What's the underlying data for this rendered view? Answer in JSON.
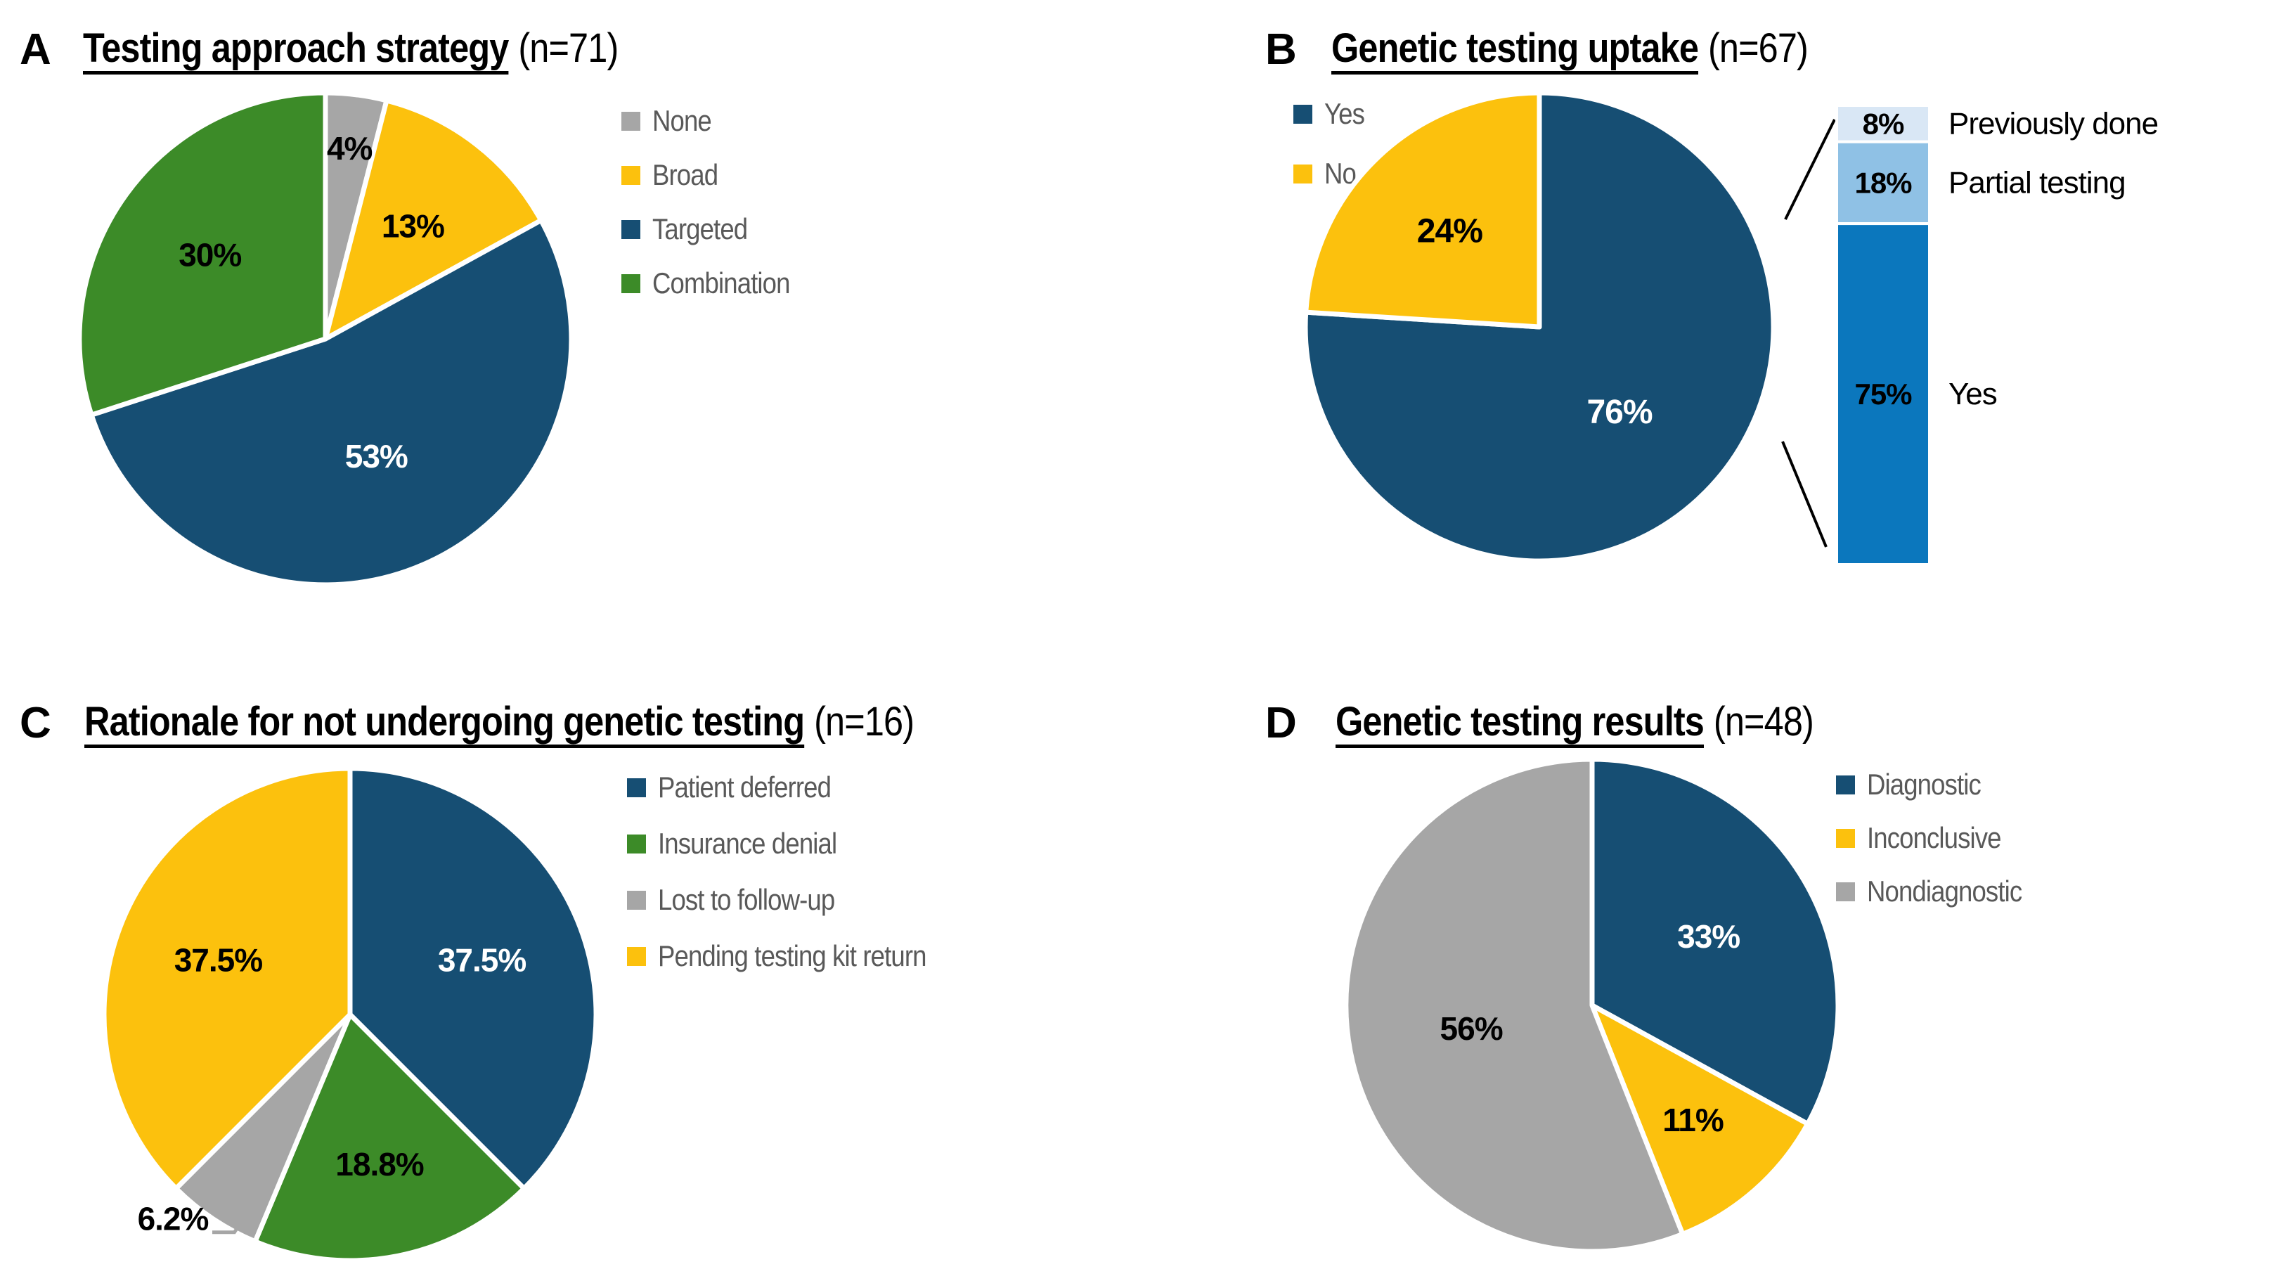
{
  "figure": {
    "background": "#ffffff",
    "title_color": "#000000",
    "legend_text_color": "#595959"
  },
  "chart_data": [
    {
      "id": "A",
      "type": "pie",
      "title": "Testing approach strategy",
      "n": 71,
      "categories": [
        "None",
        "Broad",
        "Targeted",
        "Combination"
      ],
      "values": [
        4,
        13,
        53,
        30
      ],
      "unit": "percent",
      "legend_position": "right",
      "start_angle": "12-oclock",
      "direction": "clockwise"
    },
    {
      "id": "B",
      "type": "pie",
      "title": "Genetic testing uptake",
      "n": 67,
      "categories": [
        "Yes",
        "No"
      ],
      "values": [
        76,
        24
      ],
      "unit": "percent",
      "legend_position": "left",
      "start_angle": "12-oclock",
      "direction": "clockwise",
      "breakdown_bar": {
        "type": "bar",
        "stacked": true,
        "applies_to": "Yes",
        "categories": [
          "Previously done",
          "Partial testing",
          "Yes"
        ],
        "values": [
          8,
          18,
          75
        ],
        "unit": "percent"
      }
    },
    {
      "id": "C",
      "type": "pie",
      "title": "Rationale for not undergoing genetic testing",
      "n": 16,
      "categories": [
        "Patient deferred",
        "Insurance denial",
        "Lost to follow-up",
        "Pending testing kit return"
      ],
      "values": [
        37.5,
        18.8,
        6.2,
        37.5
      ],
      "unit": "percent",
      "legend_position": "right",
      "start_angle": "12-oclock",
      "direction": "clockwise"
    },
    {
      "id": "D",
      "type": "pie",
      "title": "Genetic testing results",
      "n": 48,
      "categories": [
        "Diagnostic",
        "Inconclusive",
        "Nondiagnostic"
      ],
      "values": [
        33,
        11,
        56
      ],
      "unit": "percent",
      "legend_position": "right",
      "start_angle": "12-oclock",
      "direction": "clockwise"
    }
  ],
  "panels": {
    "A": {
      "letter": "A",
      "title": "Testing approach strategy",
      "n_label": "(n=71)",
      "legend": [
        {
          "label": "None",
          "color": "#a6a6a6"
        },
        {
          "label": "Broad",
          "color": "#fcc10d"
        },
        {
          "label": "Targeted",
          "color": "#164e73"
        },
        {
          "label": "Combination",
          "color": "#3c8b28"
        }
      ],
      "chart": {
        "type": "pie",
        "slices": [
          {
            "label": "None",
            "value": 4,
            "display": "4%",
            "color": "#a6a6a6",
            "text_color": "#000000",
            "label_r": 0.78
          },
          {
            "label": "Broad",
            "value": 13,
            "display": "13%",
            "color": "#fcc10d",
            "text_color": "#000000",
            "label_r": 0.58
          },
          {
            "label": "Targeted",
            "value": 53,
            "display": "53%",
            "color": "#164e73",
            "text_color": "#ffffff",
            "label_r": 0.52
          },
          {
            "label": "Combination",
            "value": 30,
            "display": "30%",
            "color": "#3c8b28",
            "text_color": "#000000",
            "label_r": 0.58
          }
        ]
      }
    },
    "B": {
      "letter": "B",
      "title": "Genetic testing uptake",
      "n_label": "(n=67)",
      "legend": [
        {
          "label": "Yes",
          "color": "#164e73"
        },
        {
          "label": "No",
          "color": "#fcc10d"
        }
      ],
      "chart": {
        "type": "pie",
        "slices": [
          {
            "label": "Yes",
            "value": 76,
            "display": "76%",
            "color": "#164e73",
            "text_color": "#ffffff",
            "label_r": 0.5,
            "label_size": 48
          },
          {
            "label": "No",
            "value": 24,
            "display": "24%",
            "color": "#fcc10d",
            "text_color": "#000000",
            "label_r": 0.56,
            "label_size": 48
          }
        ]
      },
      "bar": {
        "type": "stacked-bar",
        "segments": [
          {
            "label": "Previously done",
            "value": 8,
            "display": "8%",
            "color": "#d9e7f5"
          },
          {
            "label": "Partial testing",
            "value": 18,
            "display": "18%",
            "color": "#8fc1e5"
          },
          {
            "label": "Yes",
            "value": 75,
            "display": "75%",
            "color": "#0b77bd"
          }
        ]
      }
    },
    "C": {
      "letter": "C",
      "title": "Rationale for not undergoing genetic testing",
      "n_label": "(n=16)",
      "legend": [
        {
          "label": "Patient deferred",
          "color": "#164e73"
        },
        {
          "label": "Insurance denial",
          "color": "#3c8b28"
        },
        {
          "label": "Lost to follow-up",
          "color": "#a6a6a6"
        },
        {
          "label": "Pending testing kit return",
          "color": "#fcc10d"
        }
      ],
      "chart": {
        "type": "pie",
        "slices": [
          {
            "label": "Patient deferred",
            "value": 37.5,
            "display": "37.5%",
            "color": "#164e73",
            "text_color": "#ffffff",
            "label_r": 0.58
          },
          {
            "label": "Insurance denial",
            "value": 18.8,
            "display": "18.8%",
            "color": "#3c8b28",
            "text_color": "#000000",
            "label_r": 0.62
          },
          {
            "label": "Lost to follow-up",
            "value": 6.2,
            "display": "6.2%",
            "color": "#a6a6a6",
            "text_color": "#000000",
            "label_outside": true
          },
          {
            "label": "Pending testing kit return",
            "value": 37.5,
            "display": "37.5%",
            "color": "#fcc10d",
            "text_color": "#000000",
            "label_r": 0.58
          }
        ]
      }
    },
    "D": {
      "letter": "D",
      "title": "Genetic testing results",
      "n_label": "(n=48)",
      "legend": [
        {
          "label": "Diagnostic",
          "color": "#164e73"
        },
        {
          "label": "Inconclusive",
          "color": "#fcc10d"
        },
        {
          "label": "Nondiagnostic",
          "color": "#a6a6a6"
        }
      ],
      "chart": {
        "type": "pie",
        "slices": [
          {
            "label": "Diagnostic",
            "value": 33,
            "display": "33%",
            "color": "#164e73",
            "text_color": "#ffffff",
            "label_r": 0.55
          },
          {
            "label": "Inconclusive",
            "value": 11,
            "display": "11%",
            "color": "#fcc10d",
            "text_color": "#000000",
            "label_r": 0.62
          },
          {
            "label": "Nondiagnostic",
            "value": 56,
            "display": "56%",
            "color": "#a6a6a6",
            "text_color": "#000000",
            "label_r": 0.5
          }
        ]
      }
    }
  }
}
